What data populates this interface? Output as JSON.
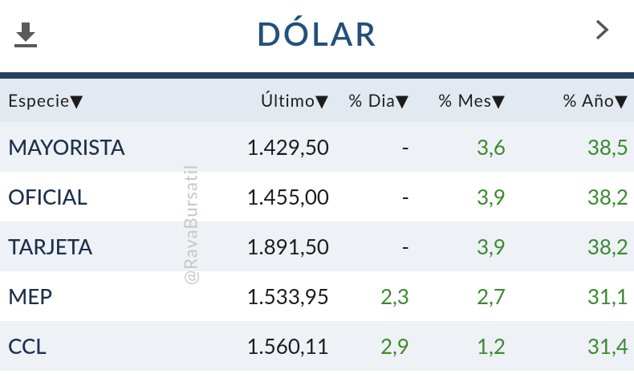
{
  "header": {
    "title": "DÓLAR"
  },
  "table": {
    "columns": [
      "Especie▼",
      "Último▼",
      "% Dia▼",
      "% Mes▼",
      "% Año▼"
    ],
    "rows": [
      [
        "MAYORISTA",
        "1.429,50",
        "-",
        "3,6",
        "38,5"
      ],
      [
        "OFICIAL",
        "1.455,00",
        "-",
        "3,9",
        "38,2"
      ],
      [
        "TARJETA",
        "1.891,50",
        "-",
        "3,9",
        "38,2"
      ],
      [
        "MEP",
        "1.533,95",
        "2,3",
        "2,7",
        "31,1"
      ],
      [
        "CCL",
        "1.560,11",
        "2,9",
        "1,2",
        "31,4"
      ]
    ]
  },
  "watermark": "@RavaBursatil"
}
